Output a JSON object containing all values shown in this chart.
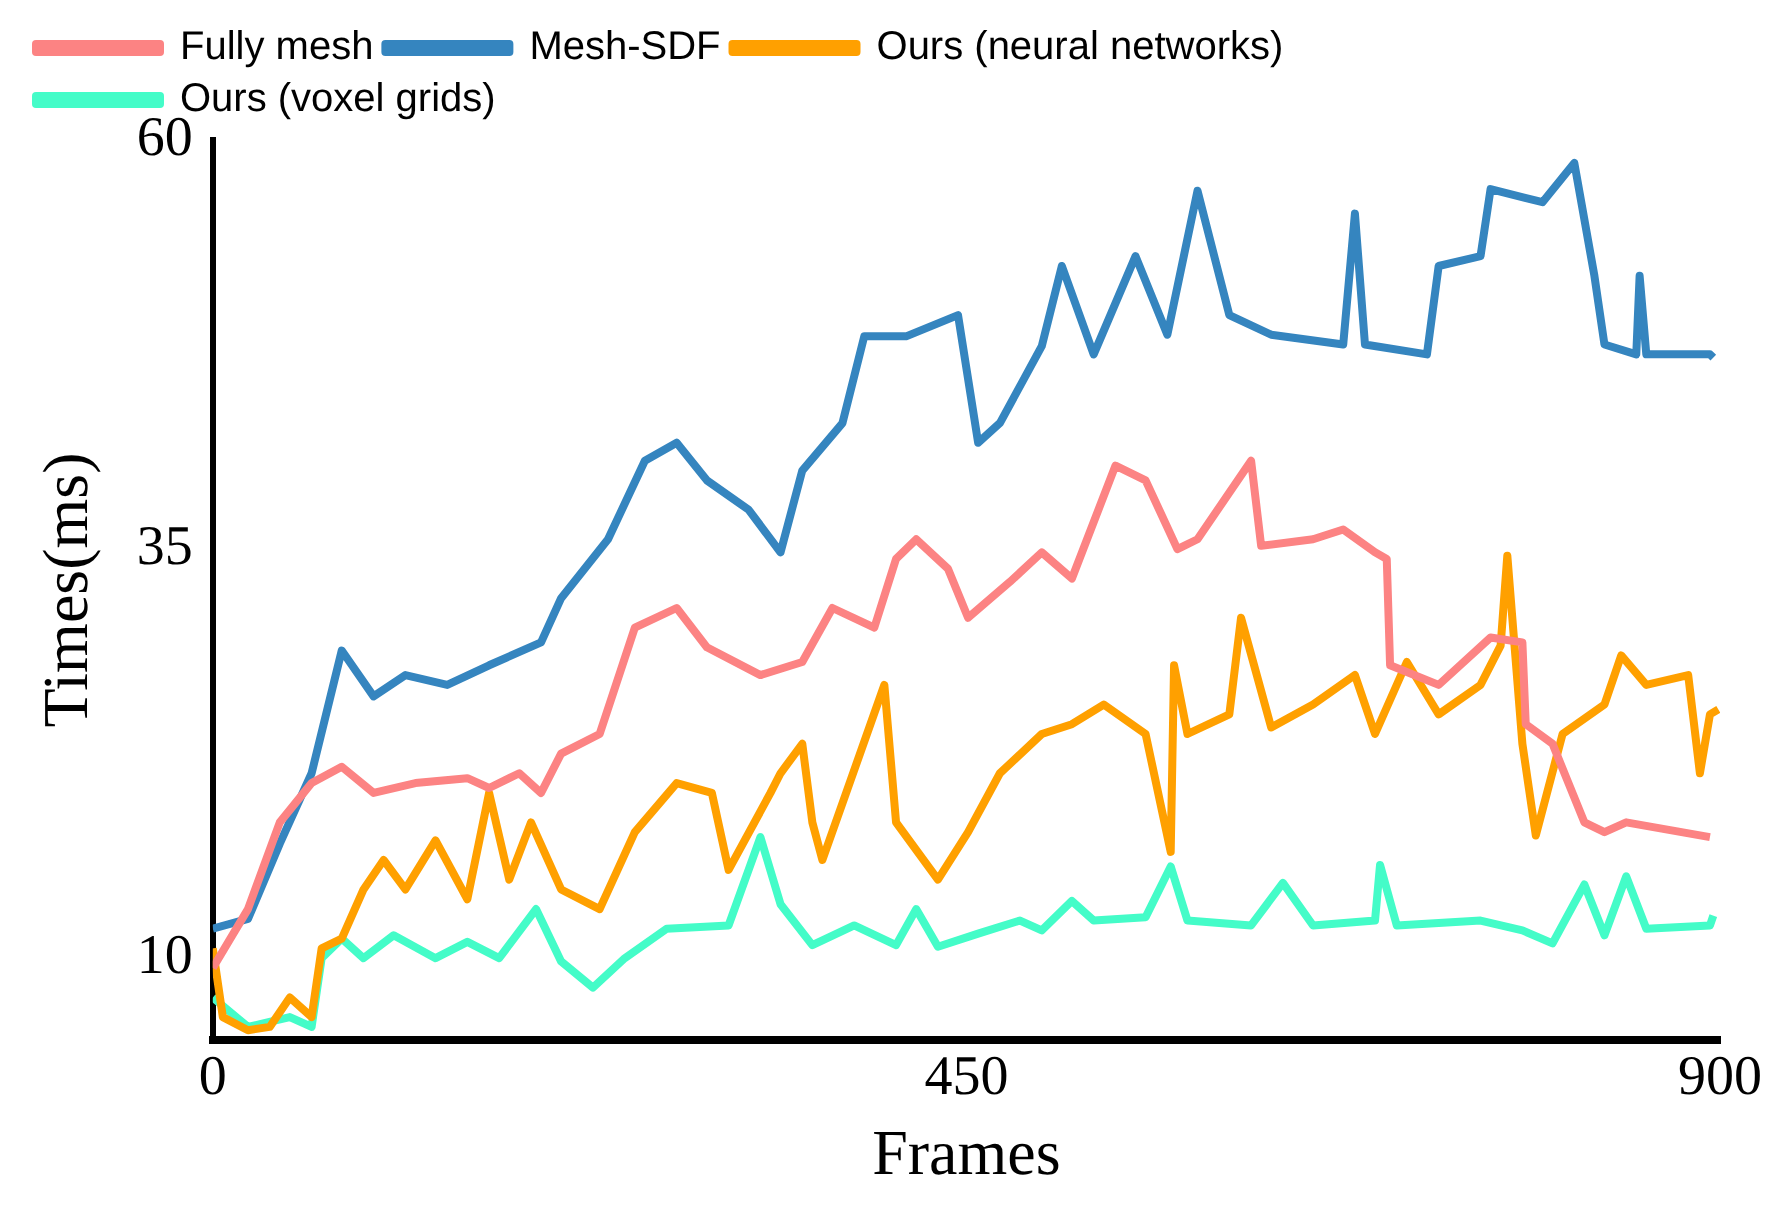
{
  "chart_data": {
    "type": "line",
    "xlabel": "Frames",
    "ylabel": "Times(ms)",
    "xlim": [
      0,
      900
    ],
    "xticks": [
      0,
      450,
      900
    ],
    "ylim": [
      5,
      60
    ],
    "yticks": [
      10,
      35,
      60
    ],
    "grid": false,
    "legend": "top left",
    "marker": "none",
    "line_style": "solid",
    "series": [
      {
        "name": "Fully mesh",
        "color": "#fc8383",
        "x": [
          0,
          21,
          40,
          59,
          77,
          96,
          121,
          152,
          165,
          183,
          196,
          208,
          231,
          252,
          277,
          295,
          327,
          352,
          370,
          395,
          408,
          420,
          439,
          451,
          476,
          495,
          513,
          539,
          557,
          576,
          588,
          620,
          626,
          657,
          675,
          694,
          701,
          703,
          732,
          763,
          782,
          784,
          800,
          819,
          831,
          844,
          894
        ],
        "values": [
          9.4,
          13,
          18.3,
          20.7,
          21.7,
          20.1,
          20.7,
          21,
          20.4,
          21.3,
          20.1,
          22.5,
          23.7,
          30.2,
          31.4,
          29,
          27.3,
          28.1,
          31.4,
          30.2,
          34.4,
          35.6,
          33.8,
          30.8,
          33,
          34.8,
          33.2,
          40.1,
          39.2,
          35,
          35.6,
          40.4,
          35.2,
          35.6,
          36.2,
          34.8,
          34.4,
          27.9,
          26.7,
          29.6,
          29.3,
          24.3,
          23.1,
          18.3,
          17.7,
          18.3,
          17.4
        ]
      },
      {
        "name": "Mesh-SDF",
        "color": "#3585bf",
        "x": [
          0,
          21,
          40,
          59,
          77,
          96,
          115,
          140,
          165,
          196,
          208,
          236,
          258,
          277,
          295,
          320,
          339,
          352,
          376,
          389,
          414,
          445,
          457,
          470,
          495,
          507,
          526,
          551,
          570,
          588,
          607,
          632,
          675,
          682,
          688,
          725,
          732,
          757,
          763,
          794,
          813,
          825,
          831,
          850,
          852,
          856,
          894,
          896
        ],
        "values": [
          11.8,
          12.4,
          17,
          21.3,
          28.8,
          26,
          27.3,
          26.7,
          27.9,
          29.3,
          32,
          35.6,
          40.4,
          41.5,
          39.2,
          37.4,
          34.8,
          39.8,
          42.7,
          48,
          48,
          49.3,
          41.5,
          42.7,
          47.4,
          52.3,
          46.9,
          52.9,
          48.1,
          56.9,
          49.3,
          48.1,
          47.5,
          55.5,
          47.5,
          46.9,
          52.3,
          52.9,
          57,
          56.2,
          58.6,
          51.7,
          47.5,
          46.9,
          51.7,
          46.9,
          46.9,
          46.7
        ]
      },
      {
        "name": "Ours (neural networks)",
        "color": "#ffa000",
        "x": [
          0,
          6,
          21,
          34,
          46,
          59,
          65,
          77,
          90,
          102,
          115,
          133,
          152,
          165,
          177,
          190,
          208,
          231,
          252,
          277,
          298,
          308,
          333,
          339,
          352,
          358,
          364,
          401,
          408,
          433,
          451,
          470,
          495,
          513,
          532,
          557,
          572,
          574,
          582,
          607,
          614,
          632,
          657,
          682,
          694,
          713,
          732,
          757,
          769,
          773,
          782,
          790,
          806,
          831,
          841,
          856,
          881,
          888,
          894,
          899
        ],
        "values": [
          10.6,
          6.4,
          5.6,
          5.8,
          7.6,
          6.4,
          10.6,
          11.2,
          14.2,
          16,
          14.2,
          17.2,
          13.6,
          20.1,
          14.8,
          18.3,
          14.2,
          13,
          17.7,
          20.7,
          20.1,
          15.4,
          20.1,
          21.3,
          23.1,
          18.3,
          16,
          26.7,
          18.3,
          14.8,
          17.7,
          21.3,
          23.7,
          24.3,
          25.5,
          23.7,
          16.5,
          27.9,
          23.7,
          24.9,
          30.8,
          24.1,
          25.5,
          27.3,
          23.7,
          28.1,
          24.9,
          26.7,
          29.1,
          34.6,
          23.1,
          17.5,
          23.7,
          25.5,
          28.5,
          26.7,
          27.3,
          21.3,
          24.9,
          25.2
        ]
      },
      {
        "name": "Ours (voxel grids)",
        "color": "#44fcc8",
        "x": [
          0,
          21,
          46,
          59,
          65,
          77,
          90,
          108,
          133,
          152,
          171,
          193,
          208,
          227,
          246,
          271,
          308,
          327,
          339,
          358,
          383,
          408,
          420,
          433,
          457,
          482,
          495,
          513,
          526,
          557,
          572,
          582,
          620,
          639,
          657,
          694,
          697,
          707,
          757,
          782,
          800,
          819,
          831,
          844,
          856,
          894,
          896
        ],
        "values": [
          7.6,
          5.8,
          6.4,
          5.8,
          10,
          11.2,
          10,
          11.4,
          10,
          11,
          10,
          13,
          9.8,
          8.2,
          10,
          11.8,
          12,
          17.4,
          13.3,
          10.8,
          12,
          10.8,
          13,
          10.7,
          11.5,
          12.3,
          11.7,
          13.5,
          12.3,
          12.5,
          15.6,
          12.3,
          12,
          14.6,
          12,
          12.3,
          15.7,
          12,
          12.3,
          11.7,
          10.9,
          14.5,
          11.4,
          15,
          11.8,
          12,
          12.6
        ]
      }
    ]
  }
}
